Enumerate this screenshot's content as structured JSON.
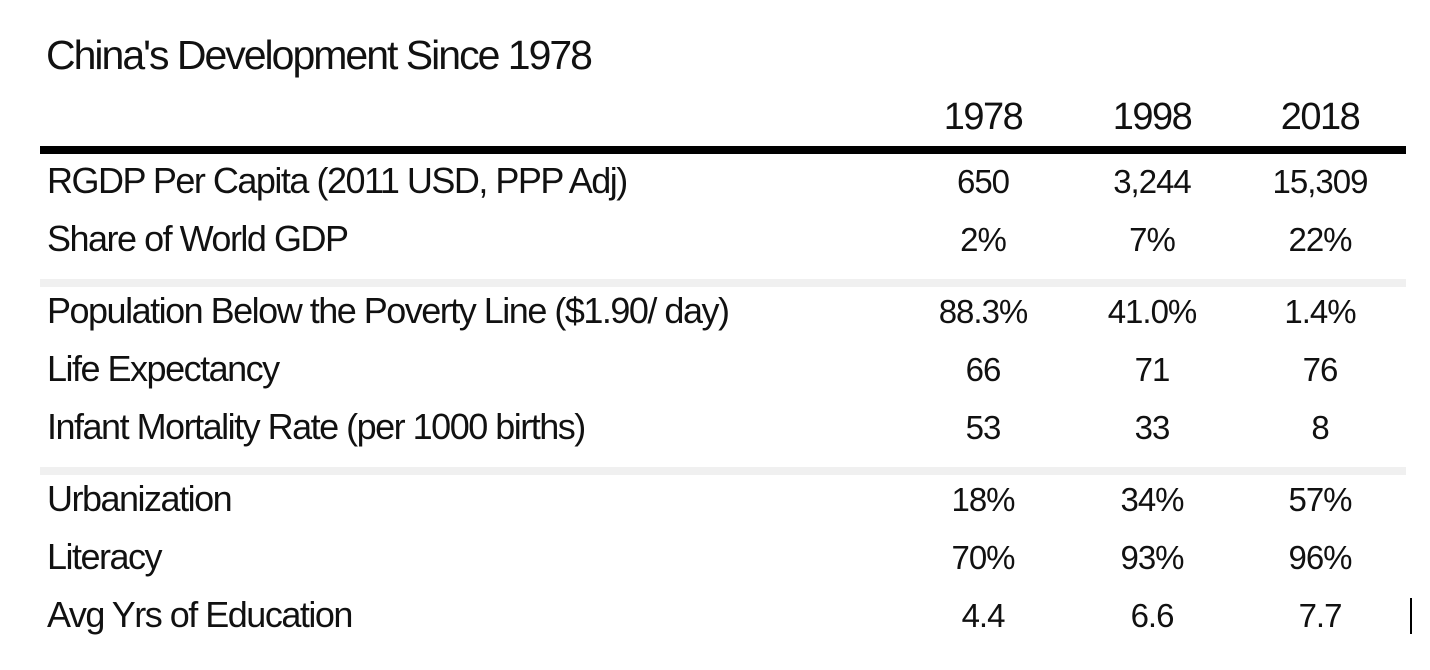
{
  "chart_data": {
    "type": "table",
    "title": "China's Development Since 1978",
    "columns": [
      "1978",
      "1998",
      "2018"
    ],
    "groups": [
      [
        {
          "label": "RGDP Per Capita (2011 USD, PPP Adj)",
          "values": [
            "650",
            "3,244",
            "15,309"
          ]
        },
        {
          "label": "Share of World GDP",
          "values": [
            "2%",
            "7%",
            "22%"
          ]
        }
      ],
      [
        {
          "label": "Population Below the Poverty Line ($1.90/ day)",
          "values": [
            "88.3%",
            "41.0%",
            "1.4%"
          ]
        },
        {
          "label": "Life Expectancy",
          "values": [
            "66",
            "71",
            "76"
          ]
        },
        {
          "label": "Infant Mortality Rate (per 1000 births)",
          "values": [
            "53",
            "33",
            "8"
          ]
        }
      ],
      [
        {
          "label": "Urbanization",
          "values": [
            "18%",
            "34%",
            "57%"
          ]
        },
        {
          "label": "Literacy",
          "values": [
            "70%",
            "93%",
            "96%"
          ]
        },
        {
          "label": "Avg Yrs of Education",
          "values": [
            "4.4",
            "6.6",
            "7.7"
          ]
        }
      ]
    ]
  }
}
